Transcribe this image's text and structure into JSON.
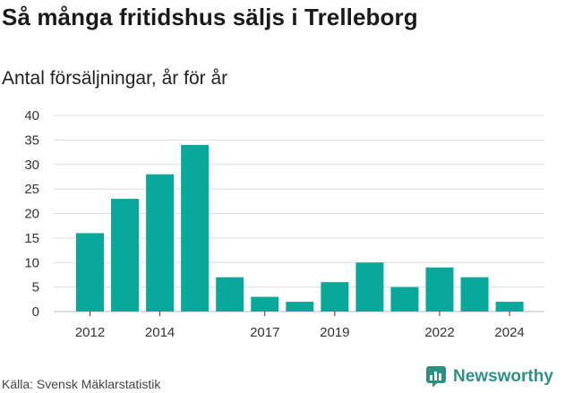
{
  "title": "Så många fritidshus säljs i Trelleborg",
  "subtitle": "Antal försäljningar, år för år",
  "source": "Källa: Svensk Mäklarstatistik",
  "logo": {
    "text": "Newsworthy",
    "icon": "newsworthy-logo-icon"
  },
  "colors": {
    "bar": "#0aa89a",
    "grid": "#dddddd",
    "logo": "#2e8f84"
  },
  "chart_data": {
    "type": "bar",
    "title": "Så många fritidshus säljs i Trelleborg",
    "subtitle": "Antal försäljningar, år för år",
    "categories": [
      "2012",
      "2013",
      "2014",
      "2015",
      "2016",
      "2017",
      "2018",
      "2019",
      "2020",
      "2021",
      "2022",
      "2023",
      "2024"
    ],
    "values": [
      16,
      23,
      28,
      34,
      7,
      3,
      2,
      6,
      10,
      5,
      9,
      7,
      2
    ],
    "x_tick_labels": [
      "2012",
      "2014",
      "2017",
      "2019",
      "2022",
      "2024"
    ],
    "y_ticks": [
      0,
      5,
      10,
      15,
      20,
      25,
      30,
      35,
      40
    ],
    "ylim": [
      0,
      40
    ],
    "grid": true,
    "legend": "none"
  }
}
